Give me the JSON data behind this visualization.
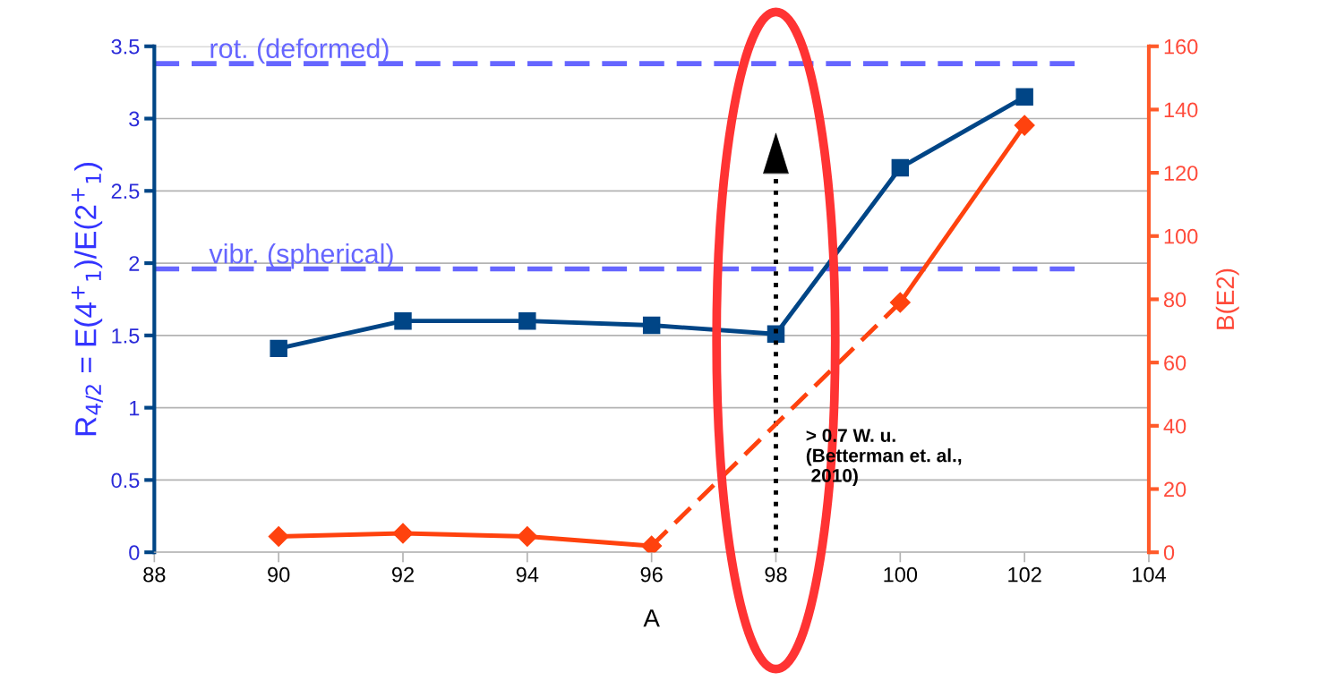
{
  "chart_data": {
    "type": "line",
    "xlabel": "A",
    "ylabel": "R$_{4/2}$ = E(4$^{+}$$_{1}$)/E(2$^{+}$$_{1}$)",
    "y2label": "B(E2)",
    "x": [
      90,
      92,
      94,
      96,
      98,
      100,
      102
    ],
    "series": [
      {
        "color": "#004586",
        "marker": "square",
        "values": [
          1.41,
          1.6,
          1.6,
          1.57,
          1.51,
          2.66,
          3.15
        ]
      },
      {
        "color": "#ff420e",
        "marker": "diamond",
        "axis": "y2",
        "x": [
          90,
          92,
          94,
          96
        ],
        "values": [
          5,
          6,
          5,
          2
        ]
      },
      {
        "color": "#ff420e",
        "axis": "y2",
        "line_style": "dashed",
        "x": [
          96,
          100
        ],
        "values": [
          2,
          79
        ]
      },
      {
        "color": "#ff420e",
        "marker": "diamond",
        "axis": "y2",
        "x": [
          100,
          102
        ],
        "values": [
          79,
          135
        ]
      }
    ],
    "xlim": [
      88,
      104
    ],
    "xticks": [
      88,
      90,
      92,
      94,
      96,
      98,
      100,
      102,
      104
    ],
    "ylim": [
      0,
      3.5
    ],
    "yticks": [
      0,
      0.5,
      1,
      1.5,
      2,
      2.5,
      3,
      3.5
    ],
    "y2lim": [
      0,
      160
    ],
    "y2ticks": [
      0,
      20,
      40,
      60,
      80,
      100,
      120,
      140,
      160
    ],
    "grid": "y",
    "ref_lines": [
      {
        "axis": "y",
        "value": 3.38,
        "label": "rot. (deformed)",
        "color": "#6666ff",
        "line_style": "dashed"
      },
      {
        "axis": "y",
        "value": 1.96,
        "label": "vibr. (spherical)",
        "color": "#6666ff",
        "line_style": "dashed"
      },
      {
        "axis": "x",
        "value": 98,
        "color": "#000000",
        "line_style": "dotted"
      }
    ],
    "annotations": [
      "> 0.7 W. u.\n(Betterman et. al.,\n 2010)"
    ]
  }
}
